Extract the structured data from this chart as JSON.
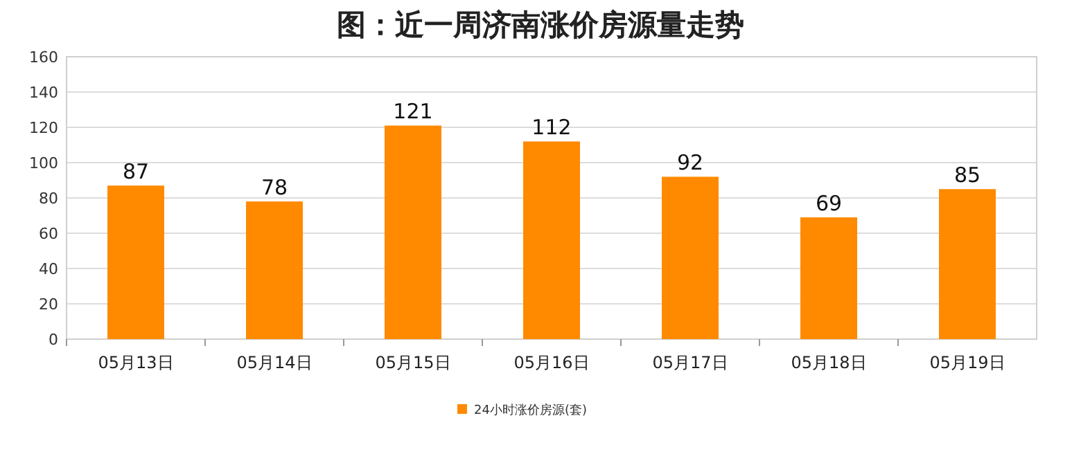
{
  "chart_data": {
    "type": "bar",
    "title": "图：近一周济南涨价房源量走势",
    "categories": [
      "05月13日",
      "05月14日",
      "05月15日",
      "05月16日",
      "05月17日",
      "05月18日",
      "05月19日"
    ],
    "series": [
      {
        "name": "24小时涨价房源(套)",
        "color": "#ff8a00",
        "values": [
          87,
          78,
          121,
          112,
          92,
          69,
          85
        ]
      }
    ],
    "ylim": [
      0,
      160
    ],
    "yticks": [
      0,
      20,
      40,
      60,
      80,
      100,
      120,
      140,
      160
    ],
    "grid": "y",
    "legend": "bottom",
    "data_labels": true
  }
}
